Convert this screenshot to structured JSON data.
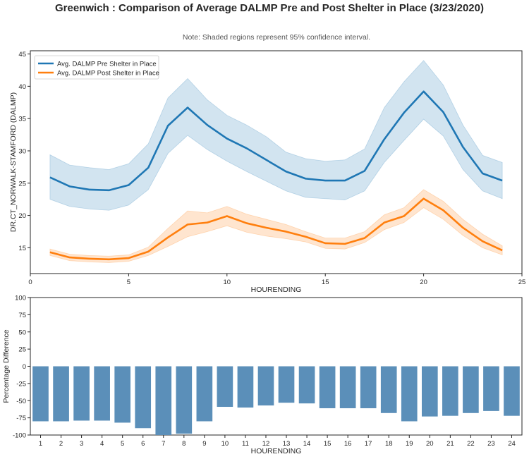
{
  "title": "Greenwich : Comparison of Average DALMP Pre and Post Shelter in Place (3/23/2020)",
  "note": "Note: Shaded regions represent 95% confidence interval.",
  "colors": {
    "pre": "#1f77b4",
    "post": "#ff7f0e",
    "bar": "#5b8fb9"
  },
  "chart_data": [
    {
      "type": "line",
      "xlabel": "HOURENDING",
      "ylabel": "DR.CT_NORWALK-STAMFORD (DALMP)",
      "xlim": [
        0,
        25
      ],
      "ylim": [
        11,
        45.5
      ],
      "xticks": [
        0,
        5,
        10,
        15,
        20,
        25
      ],
      "yticks": [
        15,
        20,
        25,
        30,
        35,
        40,
        45
      ],
      "grid": false,
      "legend_position": "top-left",
      "x": [
        1,
        2,
        3,
        4,
        5,
        6,
        7,
        8,
        9,
        10,
        11,
        12,
        13,
        14,
        15,
        16,
        17,
        18,
        19,
        20,
        21,
        22,
        23,
        24
      ],
      "series": [
        {
          "name": "Avg. DALMP Pre Shelter in Place",
          "values": [
            25.9,
            24.5,
            24.0,
            23.9,
            24.7,
            27.4,
            33.9,
            36.7,
            34.0,
            31.9,
            30.4,
            28.6,
            26.8,
            25.7,
            25.4,
            25.4,
            26.9,
            31.8,
            35.9,
            39.2,
            36.0,
            30.6,
            26.5,
            25.4
          ],
          "ci_low": [
            22.5,
            21.4,
            21.0,
            20.8,
            21.6,
            24.0,
            29.6,
            32.4,
            30.2,
            28.4,
            26.8,
            25.3,
            23.8,
            22.8,
            22.6,
            22.4,
            23.8,
            28.2,
            31.6,
            34.9,
            32.3,
            27.1,
            23.8,
            22.6
          ],
          "ci_high": [
            29.4,
            27.8,
            27.4,
            27.1,
            28.0,
            31.1,
            38.2,
            41.2,
            37.9,
            35.5,
            34.0,
            32.2,
            29.8,
            28.8,
            28.4,
            28.6,
            30.3,
            36.7,
            40.7,
            44.0,
            40.2,
            34.0,
            29.3,
            28.2
          ]
        },
        {
          "name": "Avg. DALMP Post Shelter in Place",
          "values": [
            14.3,
            13.5,
            13.3,
            13.2,
            13.4,
            14.4,
            16.6,
            18.6,
            18.9,
            19.9,
            18.8,
            18.1,
            17.5,
            16.7,
            15.7,
            15.6,
            16.5,
            18.9,
            19.9,
            22.6,
            20.8,
            18.1,
            16.0,
            14.6
          ],
          "ci_low": [
            13.8,
            13.0,
            12.8,
            12.7,
            12.9,
            13.8,
            15.2,
            16.7,
            17.5,
            18.4,
            17.4,
            16.8,
            16.4,
            15.9,
            14.9,
            14.8,
            15.8,
            17.8,
            18.9,
            21.2,
            19.4,
            16.9,
            15.0,
            13.9
          ],
          "ci_high": [
            14.8,
            14.0,
            13.8,
            13.7,
            13.9,
            15.1,
            18.0,
            20.7,
            20.4,
            21.4,
            20.2,
            19.4,
            18.6,
            17.5,
            16.5,
            16.5,
            17.5,
            20.1,
            21.2,
            24.0,
            22.2,
            19.4,
            17.1,
            15.3
          ]
        }
      ]
    },
    {
      "type": "bar",
      "xlabel": "HOURENDING",
      "ylabel": "Percentage Difference",
      "ylim": [
        -100,
        100
      ],
      "yticks": [
        -100,
        -75,
        -50,
        -25,
        0,
        25,
        50,
        75,
        100
      ],
      "grid": false,
      "categories": [
        "1",
        "2",
        "3",
        "4",
        "5",
        "6",
        "7",
        "8",
        "9",
        "10",
        "11",
        "12",
        "13",
        "14",
        "15",
        "16",
        "17",
        "18",
        "19",
        "20",
        "21",
        "22",
        "23",
        "24"
      ],
      "values": [
        -80,
        -80,
        -79,
        -79,
        -82,
        -90,
        -100,
        -98,
        -80,
        -59,
        -60,
        -57,
        -53,
        -54,
        -61,
        -61,
        -61,
        -68,
        -80,
        -73,
        -72,
        -68,
        -65,
        -72
      ]
    }
  ]
}
